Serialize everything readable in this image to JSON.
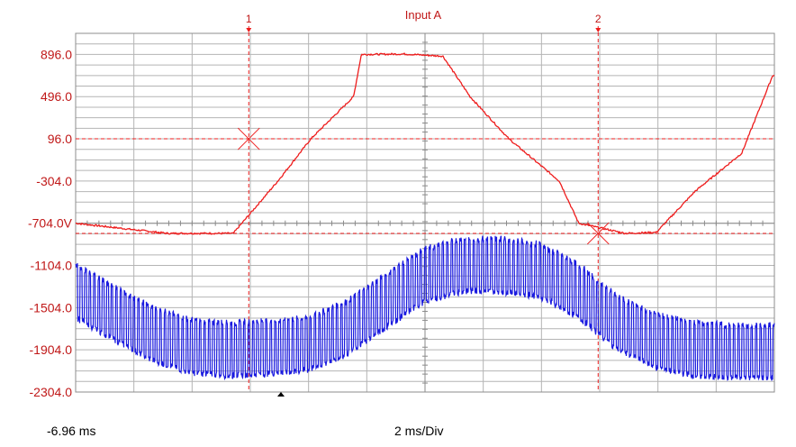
{
  "colors": {
    "channel_a": "#ee1c1c",
    "channel_b": "#1a1adf",
    "label": "#c01818",
    "grid": "#b4b4b4",
    "frame": "#8c8c8c"
  },
  "footer": {
    "start_time": "-6.96 ms",
    "timebase": "2 ms/Div"
  },
  "chart_data": {
    "type": "line",
    "title": "Input A",
    "xlabel": "",
    "ylabel": "",
    "x_unit": "ms",
    "xlim": [
      -6.96,
      11.04
    ],
    "ylim": [
      -2304,
      1096
    ],
    "y_ticks": [
      "896.0",
      "496.0",
      "96.0",
      "-304.0",
      "-704.0V",
      "-1104.0",
      "-1504.0",
      "-1904.0",
      "-2304.0"
    ],
    "y_tick_values": [
      896,
      496,
      96,
      -304,
      -704,
      -1104,
      -1504,
      -1904,
      -2304
    ],
    "grid": true,
    "cursors": [
      {
        "label": "1",
        "x": -2.5,
        "y": 96
      },
      {
        "label": "2",
        "x": 6.5,
        "y": -800
      }
    ],
    "series": [
      {
        "name": "Input A",
        "x": [
          -6.96,
          -4.6,
          -2.9,
          -1.75,
          -0.9,
          0.2,
          0.4,
          1.5,
          2.5,
          3.2,
          4.2,
          5.5,
          6.0,
          7.2,
          8.0,
          9.0,
          10.2,
          11.0
        ],
        "y": [
          -704,
          -800,
          -800,
          -304,
          96,
          496,
          896,
          900,
          880,
          496,
          96,
          -304,
          -704,
          -800,
          -790,
          -400,
          -40,
          700
        ]
      },
      {
        "name": "",
        "x": [
          -6.96,
          -6.0,
          -5.0,
          -4.0,
          -3.0,
          -2.0,
          -1.0,
          0.0,
          1.0,
          2.0,
          3.0,
          4.0,
          5.0,
          6.0,
          7.0,
          8.0,
          9.0,
          10.0,
          11.04
        ],
        "y": [
          -1350,
          -1550,
          -1750,
          -1870,
          -1900,
          -1880,
          -1850,
          -1700,
          -1450,
          -1200,
          -1100,
          -1100,
          -1150,
          -1350,
          -1650,
          -1820,
          -1900,
          -1920,
          -1920
        ],
        "ripple_amplitude": 500
      }
    ]
  }
}
